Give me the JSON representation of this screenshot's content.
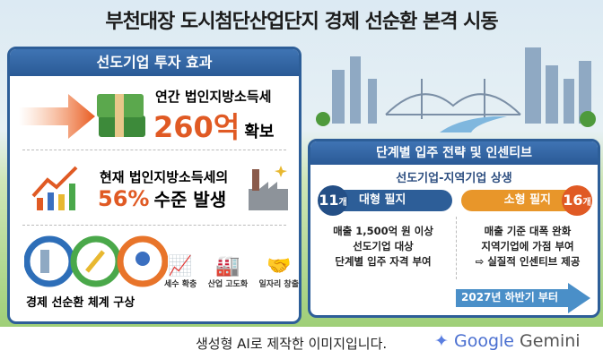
{
  "title": "부천대장 도시첨단산업단지 경제 선순환 본격 시동",
  "left_panel": {
    "header": "선도기업 투자 효과",
    "item1": {
      "line1": "연간 법인지방소득세",
      "value": "260억",
      "suffix": "확보",
      "icon": "money-stack-icon"
    },
    "item2": {
      "line1": "현재 법인지방소득세의",
      "value": "56%",
      "suffix": "수준 발생",
      "icon": "growth-chart-icon"
    },
    "cycle": {
      "label": "경제 선순환 체계 구상",
      "icons": [
        {
          "label": "세수 확충",
          "icon": "growth-chart-icon"
        },
        {
          "label": "산업 고도화",
          "icon": "factory-icon"
        },
        {
          "label": "일자리 창출",
          "icon": "handshake-icon"
        }
      ]
    }
  },
  "right_panel": {
    "header": "단계별 입주 전략 및 인센티브",
    "subtitle": "선도기업-지역기업 상생",
    "large": {
      "count": "11",
      "unit": "개",
      "label": "대형 필지",
      "lines": [
        "매출 1,500억 원 이상",
        "선도기업 대상",
        "단계별 입주 자격 부여"
      ]
    },
    "small": {
      "count": "16",
      "unit": "개",
      "label": "소형 필지",
      "lines": [
        "매출 기준 대폭 완화",
        "지역기업에 가점 부여",
        "⇨ 실질적 인센티브 제공"
      ]
    },
    "timeline": "2027년 하반기 부터"
  },
  "footer": {
    "note": "생성형 AI로 제작한 이미지입니다.",
    "brand1": "Google",
    "brand2": "Gemini"
  },
  "colors": {
    "blue": "#2d5e98",
    "orange": "#e05a24",
    "green": "#9fcf78"
  }
}
